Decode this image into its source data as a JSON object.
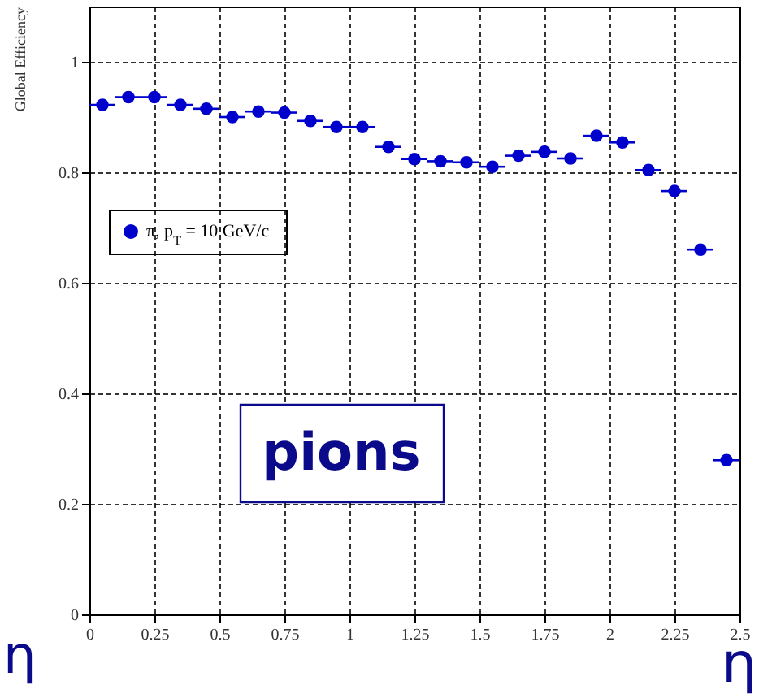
{
  "chart_data": {
    "type": "scatter",
    "ylabel": "Global Efficiency",
    "xlabel": "η",
    "x": [
      0.05,
      0.15,
      0.25,
      0.35,
      0.45,
      0.55,
      0.65,
      0.75,
      0.85,
      0.95,
      1.05,
      1.15,
      1.25,
      1.35,
      1.45,
      1.55,
      1.65,
      1.75,
      1.85,
      1.95,
      2.05,
      2.15,
      2.25,
      2.35,
      2.45
    ],
    "series": [
      {
        "name": "π, p$_{T}$ = 10 GeV/c",
        "color": "#0000cc",
        "values": [
          0.922,
          0.936,
          0.936,
          0.922,
          0.915,
          0.9,
          0.91,
          0.908,
          0.893,
          0.882,
          0.882,
          0.846,
          0.824,
          0.82,
          0.818,
          0.81,
          0.83,
          0.837,
          0.825,
          0.866,
          0.854,
          0.804,
          0.766,
          0.66,
          0.279
        ],
        "xerrors": [
          0.05,
          0.05,
          0.05,
          0.05,
          0.05,
          0.05,
          0.05,
          0.05,
          0.05,
          0.05,
          0.05,
          0.05,
          0.05,
          0.05,
          0.05,
          0.05,
          0.05,
          0.05,
          0.05,
          0.05,
          0.05,
          0.05,
          0.05,
          0.05,
          0.05
        ]
      }
    ],
    "xlim": [
      0,
      2.5
    ],
    "xticks": [
      0,
      0.25,
      0.5,
      0.75,
      1,
      1.25,
      1.5,
      1.75,
      2,
      2.25,
      2.5
    ],
    "ylim": [
      0,
      1.1
    ],
    "yticks": [
      0,
      0.2,
      0.4,
      0.6,
      0.8,
      1
    ],
    "grid": true,
    "legend": "top left",
    "marker": "circle",
    "annotations": [
      "pions",
      "η"
    ]
  }
}
